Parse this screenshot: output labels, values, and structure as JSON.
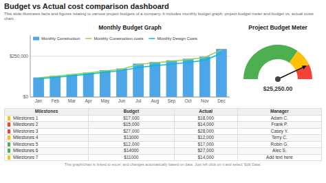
{
  "title": "Budget vs Actual cost comparison dashboard",
  "subtitle": "This slide illustrates facts and figures relating to various project budgets of a company. It includes monthly budget graph, project budget meter and budget vs. actual costs chart.",
  "footer": "This graph/chart is linked to excel, and changes automatically based on data. Just left click on it and select 'Edit Data'.",
  "chart_data": [
    {
      "type": "bar",
      "title": "Monthly Budget Graph",
      "categories": [
        "Jan",
        "Feb",
        "Mar",
        "Apr",
        "May",
        "Jun",
        "Jul",
        "Aug",
        "Sep",
        "Oct",
        "Nov",
        "Dec"
      ],
      "series": [
        {
          "name": "Monthly Construction",
          "type": "bar",
          "color": "#4da6e8",
          "values": [
            120000,
            130000,
            140000,
            150000,
            165000,
            175000,
            205000,
            215000,
            225000,
            235000,
            248000,
            295000
          ]
        },
        {
          "name": "Monthly Construction costs",
          "type": "line",
          "color": "#92d050",
          "values": [
            118000,
            128000,
            138000,
            148000,
            160000,
            170000,
            200000,
            210000,
            220000,
            230000,
            243000,
            290000
          ]
        },
        {
          "name": "Monthly Design Costs",
          "type": "line",
          "color": "#00bcd4",
          "values": [
            112000,
            120000,
            130000,
            140000,
            152000,
            162000,
            182000,
            192000,
            202000,
            212000,
            225000,
            268000
          ]
        }
      ],
      "ylim": [
        0,
        380000
      ],
      "yticks": [
        {
          "value": 0,
          "label": "$0"
        },
        {
          "value": 250000,
          "label": "$250,000"
        }
      ],
      "grid": true,
      "legend": "upper left"
    },
    {
      "type": "gauge",
      "title": "Project Budget Meter",
      "bands": [
        {
          "from": 180,
          "to": 55,
          "color": "#4caf50"
        },
        {
          "from": 55,
          "to": 25,
          "color": "#ffc107"
        },
        {
          "from": 25,
          "to": 0,
          "color": "#f44336"
        }
      ],
      "needle": 25,
      "value_label": "$25,250.00"
    },
    {
      "type": "table",
      "columns": [
        "Milestones",
        "Budget",
        "Actual",
        "Manager"
      ],
      "rows": [
        {
          "color": "#ffc107",
          "milestone": "Milestones 1",
          "budget": "$17,000",
          "actual": "$18,000",
          "manager": "Adam C."
        },
        {
          "color": "#f44336",
          "milestone": "Milestones 2",
          "budget": "$15,000",
          "actual": "$14,000",
          "manager": "Frank P."
        },
        {
          "color": "#f44336",
          "milestone": "Milestones 3",
          "budget": "$27,000",
          "actual": "$28,000",
          "manager": "Casey Y."
        },
        {
          "color": "#ffc107",
          "milestone": "Milestones 4",
          "budget": "$13000",
          "actual": "$12,000",
          "manager": "Terry C."
        },
        {
          "color": "#4caf50",
          "milestone": "Milestones 5",
          "budget": "$12,000",
          "actual": "$17,000",
          "manager": "Robin G."
        },
        {
          "color": "#4caf50",
          "milestone": "Milestones 6",
          "budget": "$14000",
          "actual": "$27,000",
          "manager": "Alec S."
        },
        {
          "color": "#ffc107",
          "milestone": "Milestones 7",
          "budget": "$11000",
          "actual": "$14,000",
          "manager": "Add text here"
        }
      ]
    }
  ]
}
